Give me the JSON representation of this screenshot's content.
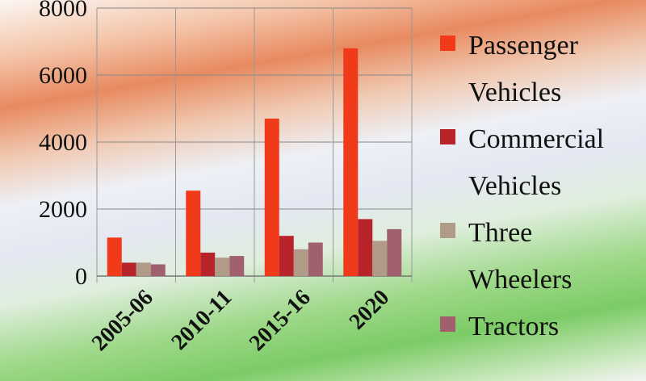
{
  "chart_data": {
    "type": "bar",
    "categories": [
      "2005-06",
      "2010-11",
      "2015-16",
      "2020"
    ],
    "series": [
      {
        "name": "Passenger Vehicles",
        "color": "#f03a1a",
        "values": [
          1150,
          2550,
          4700,
          6800
        ]
      },
      {
        "name": "Commercial Vehicles",
        "color": "#b8242a",
        "values": [
          400,
          700,
          1200,
          1700
        ]
      },
      {
        "name": "Three Wheelers",
        "color": "#b09a88",
        "values": [
          400,
          550,
          800,
          1050
        ]
      },
      {
        "name": "Tractors",
        "color": "#a0606e",
        "values": [
          350,
          600,
          1000,
          1400
        ]
      }
    ],
    "ylim": [
      0,
      8000
    ],
    "yticks": [
      0,
      2000,
      4000,
      6000,
      8000
    ],
    "grid": true,
    "legend": "right"
  }
}
